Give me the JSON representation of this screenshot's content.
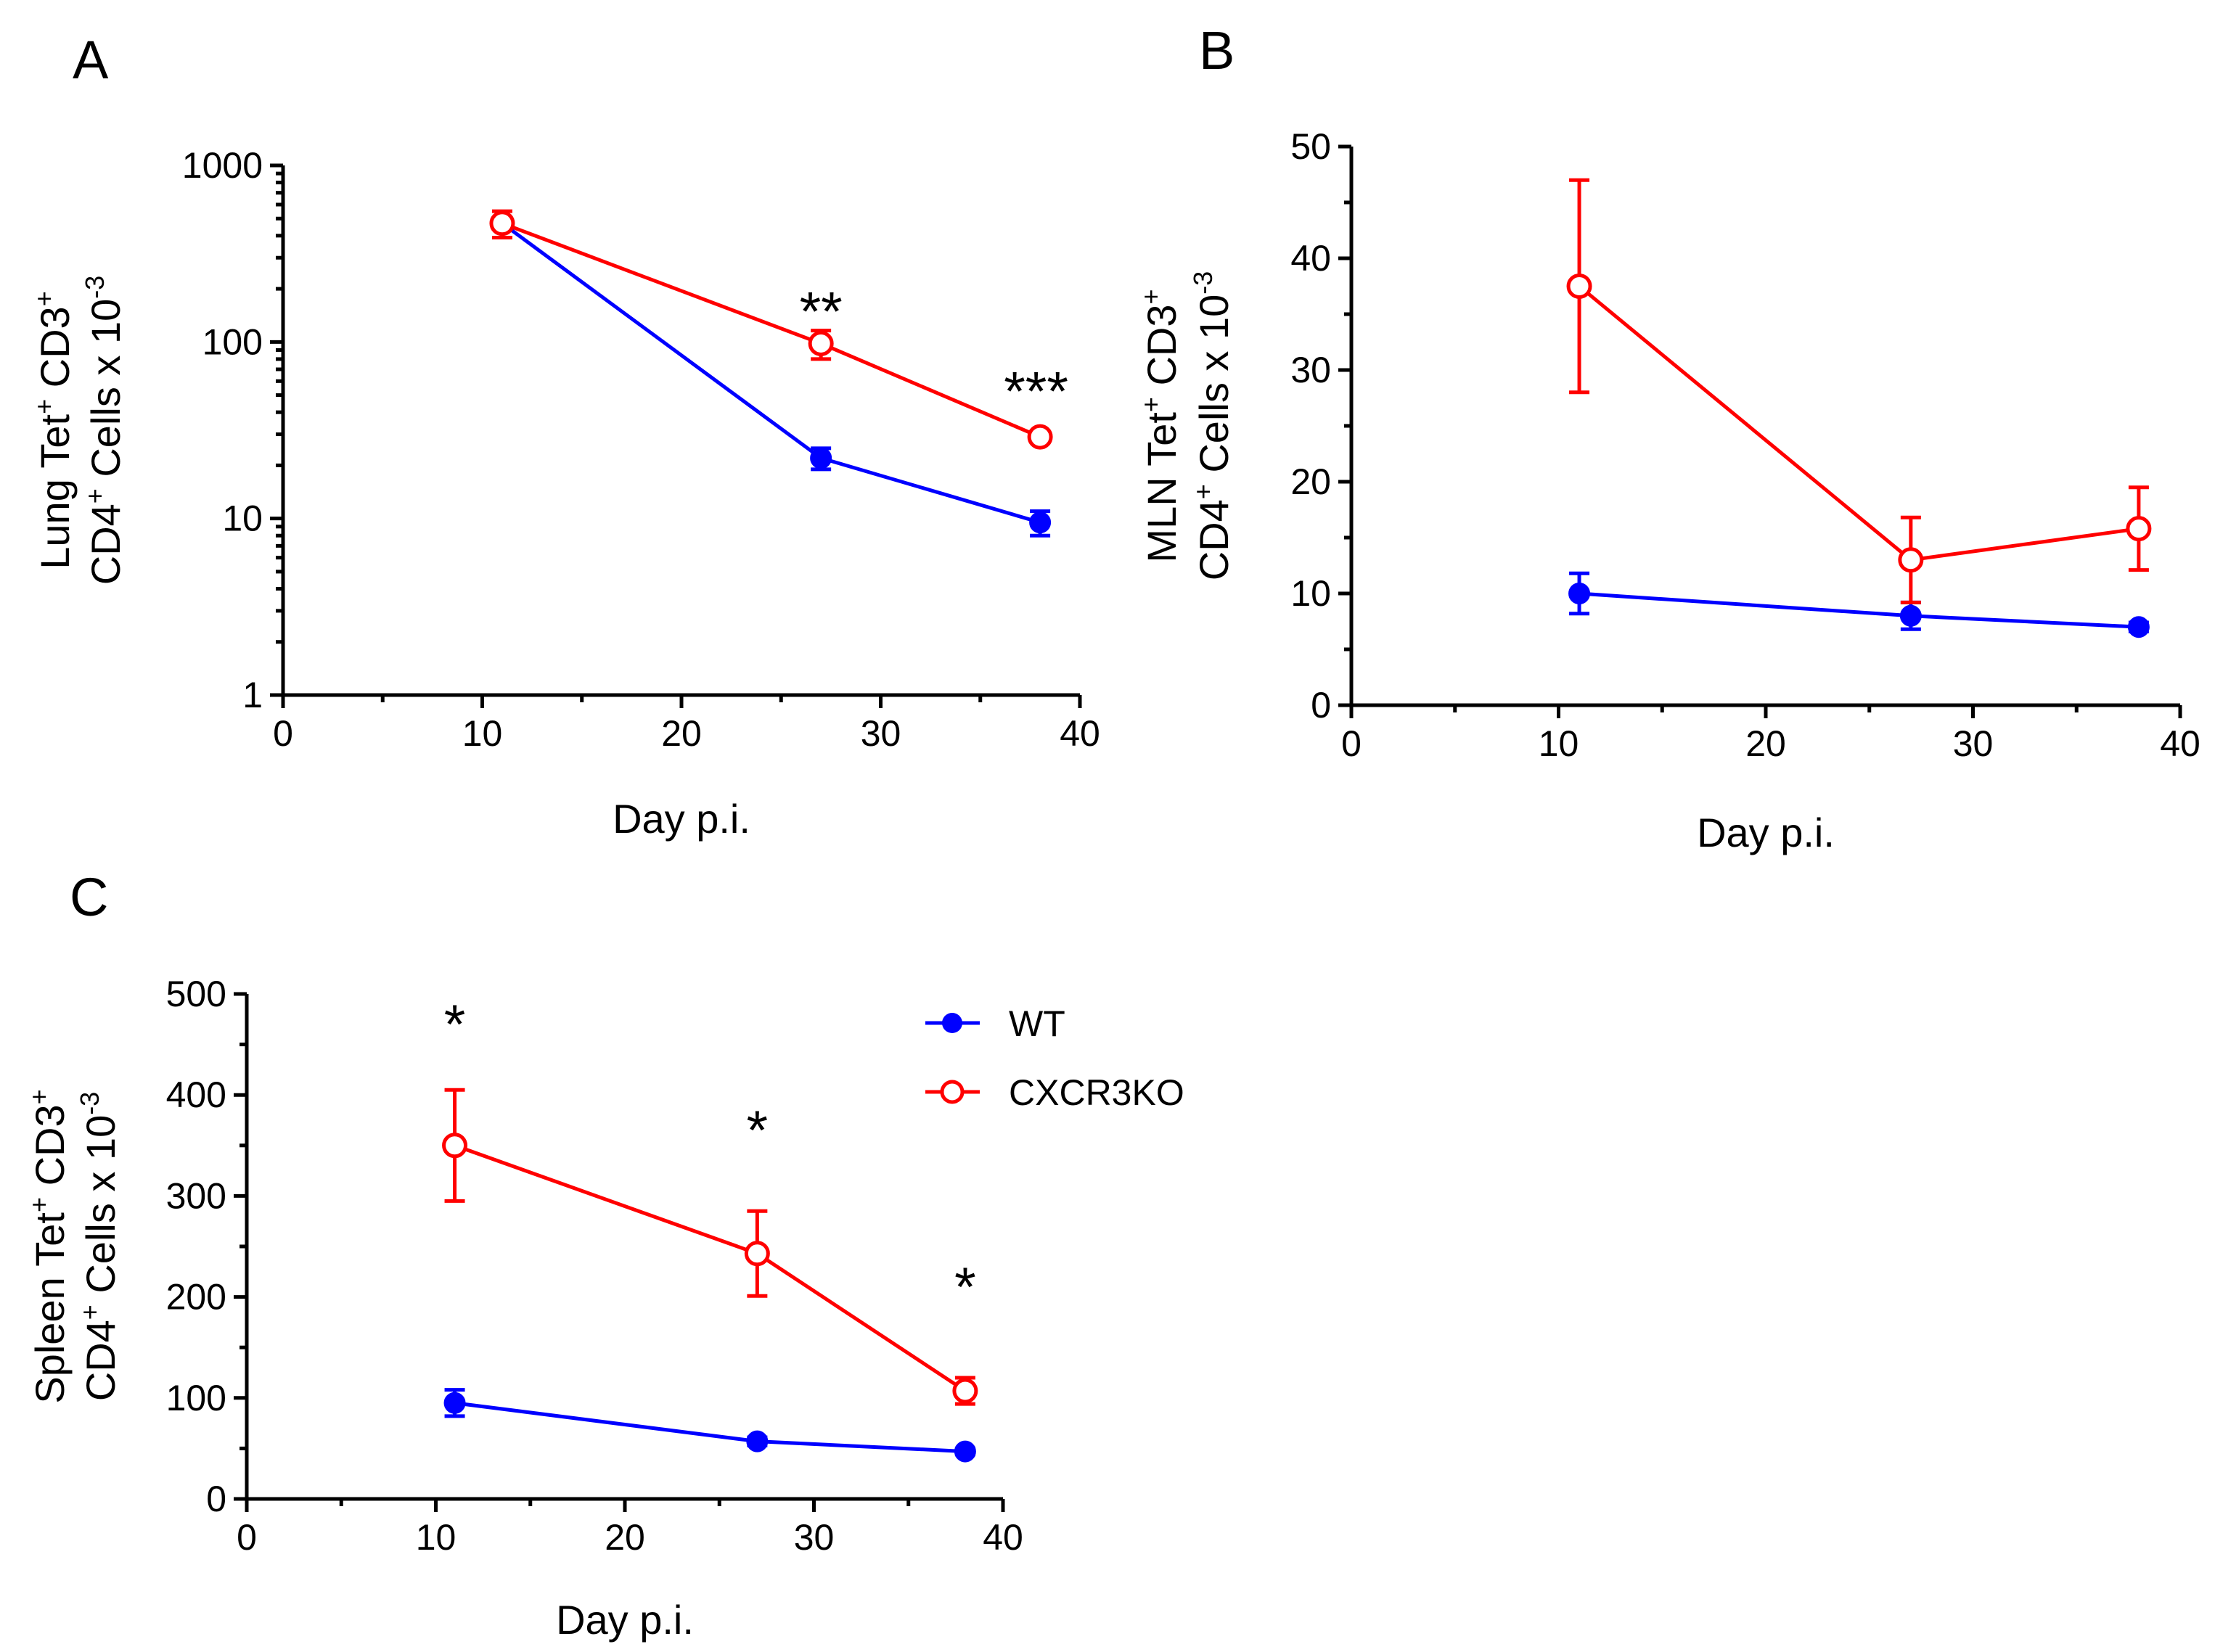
{
  "legend": {
    "wt_label": "WT",
    "ko_label": "CXCR3KO",
    "wt_color": "#0000ff",
    "ko_color": "#ff0000"
  },
  "chart_data": [
    {
      "panel": "A",
      "type": "line",
      "yscale": "log",
      "xlabel": "Day p.i.",
      "ylabel_line1": [
        "Lung Tet",
        "+",
        " CD3",
        "+"
      ],
      "ylabel_line2": [
        "CD4",
        "+",
        " Cells x 10",
        "-3"
      ],
      "xlim": [
        0,
        40
      ],
      "ylim": [
        1,
        1000
      ],
      "xticks": [
        0,
        10,
        20,
        30,
        40
      ],
      "yticks": [
        1,
        10,
        100,
        1000
      ],
      "series": [
        {
          "name": "WT",
          "marker": "filled",
          "x": [
            11,
            27,
            38
          ],
          "y": [
            470,
            22,
            9.5
          ],
          "err": [
            30,
            3,
            1.5
          ]
        },
        {
          "name": "CXCR3KO",
          "marker": "open",
          "x": [
            11,
            27,
            38
          ],
          "y": [
            470,
            98,
            29
          ],
          "err": [
            80,
            18,
            2
          ]
        }
      ],
      "annotations": [
        {
          "text": "**",
          "x": 27,
          "y": 170
        },
        {
          "text": "***",
          "x": 37.8,
          "y": 60
        }
      ]
    },
    {
      "panel": "B",
      "type": "line",
      "yscale": "linear",
      "xlabel": "Day p.i.",
      "ylabel_line1": [
        "MLN Tet",
        "+",
        " CD3",
        "+"
      ],
      "ylabel_line2": [
        "CD4",
        "+",
        " Cells x 10",
        "-3"
      ],
      "xlim": [
        0,
        40
      ],
      "ylim": [
        0,
        50
      ],
      "xticks": [
        0,
        10,
        20,
        30,
        40
      ],
      "yticks": [
        0,
        10,
        20,
        30,
        40,
        50
      ],
      "series": [
        {
          "name": "WT",
          "marker": "filled",
          "x": [
            11,
            27,
            38
          ],
          "y": [
            10,
            8,
            7
          ],
          "err": [
            1.8,
            1.2,
            0.4
          ]
        },
        {
          "name": "CXCR3KO",
          "marker": "open",
          "x": [
            11,
            27,
            38
          ],
          "y": [
            37.5,
            13,
            15.8
          ],
          "err": [
            9.5,
            3.8,
            3.7
          ]
        }
      ],
      "annotations": []
    },
    {
      "panel": "C",
      "type": "line",
      "yscale": "linear",
      "xlabel": "Day p.i.",
      "ylabel_line1": [
        "Spleen Tet",
        "+",
        " CD3",
        "+"
      ],
      "ylabel_line2": [
        "CD4",
        "+",
        " Cells x 10",
        "-3"
      ],
      "xlim": [
        0,
        40
      ],
      "ylim": [
        0,
        500
      ],
      "xticks": [
        0,
        10,
        20,
        30,
        40
      ],
      "yticks": [
        0,
        100,
        200,
        300,
        400,
        500
      ],
      "series": [
        {
          "name": "WT",
          "marker": "filled",
          "x": [
            11,
            27,
            38
          ],
          "y": [
            95,
            57,
            47
          ],
          "err": [
            13,
            4,
            3
          ]
        },
        {
          "name": "CXCR3KO",
          "marker": "open",
          "x": [
            11,
            27,
            38
          ],
          "y": [
            350,
            243,
            107
          ],
          "err": [
            55,
            42,
            13
          ]
        }
      ],
      "annotations": [
        {
          "text": "*",
          "x": 11,
          "y": 480
        },
        {
          "text": "*",
          "x": 27,
          "y": 375
        },
        {
          "text": "*",
          "x": 38,
          "y": 220
        }
      ]
    }
  ]
}
